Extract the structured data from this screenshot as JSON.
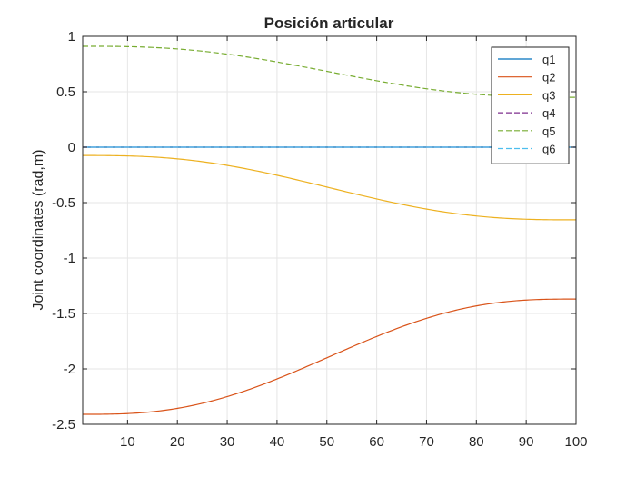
{
  "chart_data": {
    "type": "line",
    "title": "Posición articular",
    "xlabel": "",
    "ylabel": "Joint coordinates (rad,m)",
    "xlim": [
      1,
      100
    ],
    "ylim": [
      -2.5,
      1
    ],
    "xticks": [
      10,
      20,
      30,
      40,
      50,
      60,
      70,
      80,
      90,
      100
    ],
    "yticks": [
      1,
      0.5,
      0,
      -0.5,
      -1,
      -1.5,
      -2,
      -2.5
    ],
    "ytick_labels": [
      "1",
      "0.5",
      "0",
      "-0.5",
      "-1",
      "-1.5",
      "-2",
      "-2.5"
    ],
    "grid": true,
    "legend_position": "top-right",
    "x": [
      1,
      100
    ],
    "series": [
      {
        "name": "q1",
        "color": "#0072BD",
        "style": "solid",
        "start": 0,
        "end": 0
      },
      {
        "name": "q2",
        "color": "#D95319",
        "style": "solid",
        "start": -2.41,
        "end": -1.37
      },
      {
        "name": "q3",
        "color": "#EDB120",
        "style": "solid",
        "start": -0.075,
        "end": -0.655
      },
      {
        "name": "q4",
        "color": "#7E2F8E",
        "style": "dashed",
        "start": 0,
        "end": 0
      },
      {
        "name": "q5",
        "color": "#77AC30",
        "style": "dashed",
        "start": 0.91,
        "end": 0.45
      },
      {
        "name": "q6",
        "color": "#4DBEEE",
        "style": "dashed",
        "start": 0,
        "end": 0
      }
    ],
    "profile": "smooth quintic interpolation from start (x=1) to end (x=100)"
  }
}
